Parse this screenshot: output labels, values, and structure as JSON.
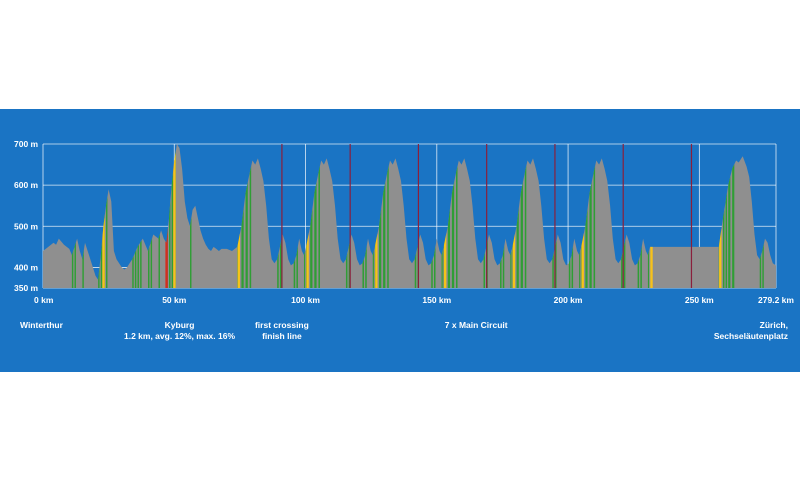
{
  "chart_data": {
    "type": "area",
    "title": "",
    "xlabel": "",
    "ylabel": "",
    "xlim": [
      0,
      279.2
    ],
    "ylim": [
      350,
      700
    ],
    "y_ticks": [
      {
        "value": 350,
        "label": "350 m"
      },
      {
        "value": 400,
        "label": "400 m"
      },
      {
        "value": 500,
        "label": "500 m"
      },
      {
        "value": 600,
        "label": "600 m"
      },
      {
        "value": 700,
        "label": "700 m"
      }
    ],
    "x_ticks": [
      {
        "value": 0,
        "label": "0 km"
      },
      {
        "value": 50,
        "label": "50 km"
      },
      {
        "value": 100,
        "label": "100 km"
      },
      {
        "value": 150,
        "label": "150 km"
      },
      {
        "value": 200,
        "label": "200 km"
      },
      {
        "value": 250,
        "label": "250 km"
      },
      {
        "value": 279.2,
        "label": "279.2 km"
      }
    ],
    "profile": {
      "x": [
        0,
        2,
        4,
        5,
        6,
        8,
        10,
        11,
        12,
        13,
        14,
        15,
        16,
        18,
        19,
        20,
        21,
        22,
        23,
        24,
        25,
        26,
        27,
        28,
        29,
        30,
        31,
        32,
        33,
        34,
        36,
        38,
        40,
        42,
        44,
        45,
        46,
        47,
        48,
        49,
        50,
        51,
        52,
        53,
        54,
        55,
        56,
        57,
        58,
        59,
        60,
        61,
        62,
        63,
        64,
        65,
        66,
        67,
        68,
        70,
        72,
        74
      ],
      "y": [
        440,
        450,
        460,
        455,
        470,
        455,
        445,
        430,
        450,
        470,
        440,
        420,
        460,
        420,
        400,
        380,
        370,
        430,
        500,
        550,
        590,
        560,
        440,
        420,
        410,
        400,
        395,
        400,
        410,
        420,
        450,
        470,
        440,
        480,
        470,
        490,
        470,
        460,
        520,
        600,
        660,
        700,
        690,
        640,
        560,
        520,
        500,
        540,
        550,
        520,
        490,
        470,
        455,
        445,
        440,
        450,
        445,
        440,
        445,
        445,
        440,
        450
      ]
    },
    "circuit": {
      "laps": 7,
      "start_km": 74,
      "lap_km": 26.2,
      "shape": {
        "fraction": [
          0,
          0.06,
          0.12,
          0.18,
          0.22,
          0.26,
          0.3,
          0.34,
          0.38,
          0.42,
          0.46,
          0.5,
          0.54,
          0.58,
          0.62,
          0.66,
          0.7,
          0.74,
          0.78,
          0.82,
          0.86,
          0.9,
          0.94,
          0.97,
          1.0
        ],
        "y": [
          450,
          500,
          580,
          630,
          660,
          650,
          665,
          640,
          610,
          550,
          470,
          420,
          410,
          420,
          450,
          480,
          460,
          420,
          405,
          410,
          430,
          470,
          440,
          430,
          450
        ]
      }
    },
    "finish_tail": {
      "x": [
        257.4,
        259,
        261,
        262.5,
        264,
        265,
        266.5,
        268,
        269,
        270,
        271,
        272,
        273,
        274,
        275,
        276,
        277,
        278,
        279.2
      ],
      "y": [
        450,
        520,
        600,
        640,
        660,
        655,
        670,
        645,
        620,
        560,
        480,
        430,
        420,
        440,
        470,
        460,
        430,
        410,
        405
      ]
    },
    "climbs": [
      {
        "km": 23,
        "color": "#f7c21a"
      },
      {
        "km": 47,
        "color": "#d62b1f"
      },
      {
        "km": 50,
        "color": "#f7c21a"
      },
      {
        "km": 74.5,
        "color": "#f7c21a"
      },
      {
        "km": 100.7,
        "color": "#f7c21a"
      },
      {
        "km": 126.9,
        "color": "#f7c21a"
      },
      {
        "km": 153.1,
        "color": "#f7c21a"
      },
      {
        "km": 179.3,
        "color": "#f7c21a"
      },
      {
        "km": 205.5,
        "color": "#f7c21a"
      },
      {
        "km": 231.7,
        "color": "#f7c21a"
      },
      {
        "km": 257.9,
        "color": "#f7c21a"
      }
    ],
    "circuit_dividers_km": [
      91,
      117,
      143,
      169,
      195,
      221,
      247
    ],
    "annotations": [
      {
        "km": 0,
        "lines": [
          "Winterthur"
        ],
        "anchor": "start"
      },
      {
        "km": 52,
        "lines": [
          "Kyburg",
          "1.2 km, avg. 12%, max. 16%"
        ],
        "anchor": "middle"
      },
      {
        "km": 91,
        "lines": [
          "first crossing",
          "finish line"
        ],
        "anchor": "middle"
      },
      {
        "km": 165,
        "lines": [
          "7 x Main Circuit"
        ],
        "anchor": "middle"
      },
      {
        "km": 279.2,
        "lines": [
          "Zürich,",
          "Sechseläutenplatz"
        ],
        "anchor": "end"
      }
    ],
    "grid": true,
    "colors": {
      "background": "#1a74c4",
      "profile_fill": "#8f8f8f",
      "green": "#2f9e35",
      "yellow": "#f7c21a",
      "red": "#d62b1f",
      "divider": "#8a1f3c",
      "grid": "#ffffff"
    }
  }
}
